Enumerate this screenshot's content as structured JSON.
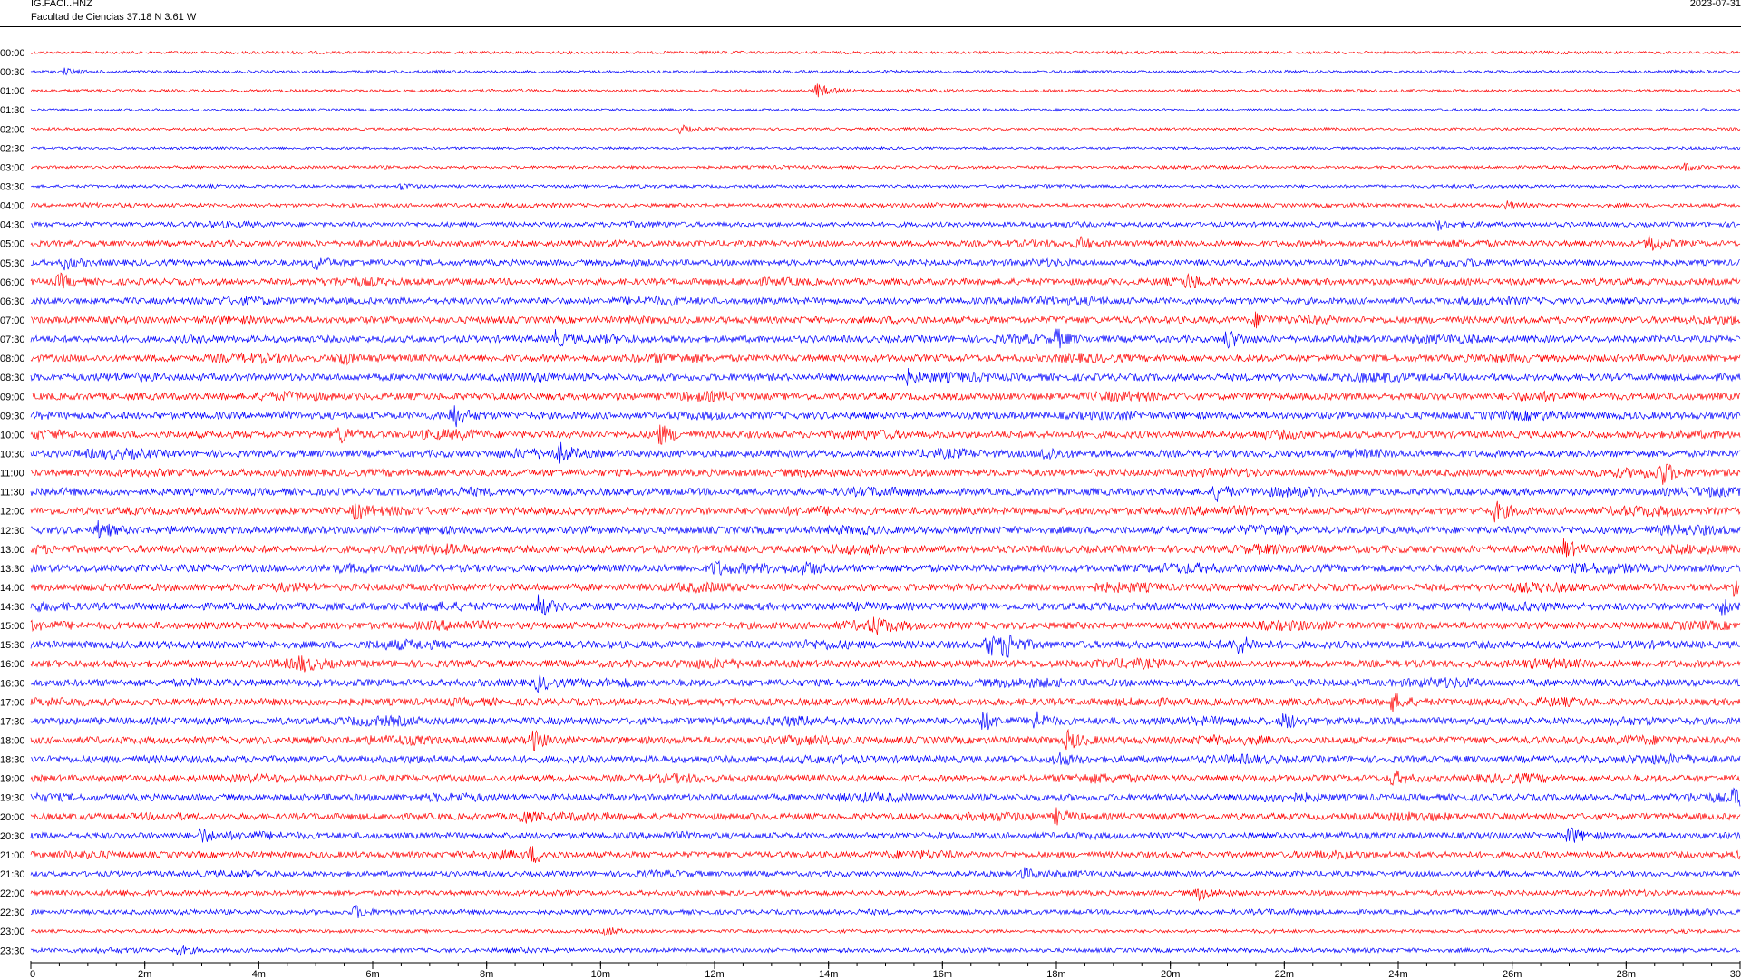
{
  "header": {
    "station_code": "IG.FACI..HNZ",
    "station_desc": "Facultad de Ciencias  37.18 N 3.61 W",
    "date": "2023-07-31"
  },
  "chart_data": {
    "type": "line",
    "title": "",
    "xlabel": "",
    "ylabel": "",
    "x_unit": "minutes",
    "xlim": [
      0,
      30
    ],
    "x_ticks": [
      0,
      2,
      4,
      6,
      8,
      10,
      12,
      14,
      16,
      18,
      20,
      22,
      24,
      26,
      28,
      30
    ],
    "x_tick_labels": [
      "0",
      "2m",
      "4m",
      "6m",
      "8m",
      "10m",
      "12m",
      "14m",
      "16m",
      "18m",
      "20m",
      "22m",
      "24m",
      "26m",
      "28m",
      "30"
    ],
    "minor_ticks_per_minute": 2,
    "grid": false,
    "colors": [
      "#ff0000",
      "#0000ff"
    ],
    "rows": [
      {
        "label": "00:00",
        "level": 0.15,
        "events": []
      },
      {
        "label": "00:30",
        "level": 0.15,
        "events": [
          {
            "t": 0.6,
            "a": 0.4
          }
        ]
      },
      {
        "label": "01:00",
        "level": 0.15,
        "events": [
          {
            "t": 13.8,
            "a": 1.0
          }
        ]
      },
      {
        "label": "01:30",
        "level": 0.12,
        "events": []
      },
      {
        "label": "02:00",
        "level": 0.12,
        "events": [
          {
            "t": 11.4,
            "a": 0.5
          }
        ]
      },
      {
        "label": "02:30",
        "level": 0.12,
        "events": []
      },
      {
        "label": "03:00",
        "level": 0.18,
        "events": [
          {
            "t": 29.0,
            "a": 0.6
          }
        ]
      },
      {
        "label": "03:30",
        "level": 0.2,
        "events": [
          {
            "t": 6.5,
            "a": 0.4
          }
        ]
      },
      {
        "label": "04:00",
        "level": 0.35,
        "events": [
          {
            "t": 25.9,
            "a": 0.5
          }
        ]
      },
      {
        "label": "04:30",
        "level": 0.5,
        "events": [
          {
            "t": 24.7,
            "a": 0.6
          }
        ]
      },
      {
        "label": "05:00",
        "level": 0.7,
        "events": [
          {
            "t": 18.4,
            "a": 0.8
          },
          {
            "t": 28.4,
            "a": 1.2
          }
        ]
      },
      {
        "label": "05:30",
        "level": 0.7,
        "events": [
          {
            "t": 0.6,
            "a": 0.8
          },
          {
            "t": 5.0,
            "a": 0.9
          }
        ]
      },
      {
        "label": "06:00",
        "level": 0.8,
        "events": [
          {
            "t": 0.5,
            "a": 0.9
          },
          {
            "t": 20.3,
            "a": 0.8
          }
        ]
      },
      {
        "label": "06:30",
        "level": 0.8,
        "events": [
          {
            "t": 17.2,
            "a": 0.7
          }
        ]
      },
      {
        "label": "07:00",
        "level": 0.85,
        "events": [
          {
            "t": 21.5,
            "a": 0.8
          }
        ]
      },
      {
        "label": "07:30",
        "level": 0.85,
        "events": [
          {
            "t": 9.2,
            "a": 1.0
          },
          {
            "t": 18.0,
            "a": 1.1
          },
          {
            "t": 21.0,
            "a": 1.2
          }
        ]
      },
      {
        "label": "08:00",
        "level": 0.9,
        "events": [
          {
            "t": 5.4,
            "a": 0.9
          }
        ]
      },
      {
        "label": "08:30",
        "level": 0.9,
        "events": [
          {
            "t": 15.4,
            "a": 0.8
          }
        ]
      },
      {
        "label": "09:00",
        "level": 0.9,
        "events": []
      },
      {
        "label": "09:30",
        "level": 0.9,
        "events": [
          {
            "t": 7.4,
            "a": 1.6
          }
        ]
      },
      {
        "label": "10:00",
        "level": 0.9,
        "events": [
          {
            "t": 5.4,
            "a": 1.2
          },
          {
            "t": 11.0,
            "a": 1.6
          }
        ]
      },
      {
        "label": "10:30",
        "level": 0.9,
        "events": [
          {
            "t": 9.3,
            "a": 1.0
          },
          {
            "t": 17.8,
            "a": 1.0
          }
        ]
      },
      {
        "label": "11:00",
        "level": 0.9,
        "events": [
          {
            "t": 28.6,
            "a": 1.6
          }
        ]
      },
      {
        "label": "11:30",
        "level": 0.9,
        "events": [
          {
            "t": 20.8,
            "a": 1.1
          }
        ]
      },
      {
        "label": "12:00",
        "level": 0.95,
        "events": [
          {
            "t": 5.7,
            "a": 1.0
          },
          {
            "t": 25.7,
            "a": 1.2
          }
        ]
      },
      {
        "label": "12:30",
        "level": 0.95,
        "events": [
          {
            "t": 1.2,
            "a": 1.1
          }
        ]
      },
      {
        "label": "13:00",
        "level": 0.95,
        "events": [
          {
            "t": 26.9,
            "a": 1.2
          }
        ]
      },
      {
        "label": "13:30",
        "level": 0.95,
        "events": [
          {
            "t": 12.0,
            "a": 0.9
          },
          {
            "t": 13.6,
            "a": 1.0
          }
        ]
      },
      {
        "label": "14:00",
        "level": 0.9,
        "events": [
          {
            "t": 29.9,
            "a": 1.0
          }
        ]
      },
      {
        "label": "14:30",
        "level": 0.95,
        "events": [
          {
            "t": 8.9,
            "a": 1.4
          },
          {
            "t": 29.7,
            "a": 1.0
          }
        ]
      },
      {
        "label": "15:00",
        "level": 0.9,
        "events": [
          {
            "t": 14.8,
            "a": 0.9
          }
        ]
      },
      {
        "label": "15:30",
        "level": 0.95,
        "events": [
          {
            "t": 16.8,
            "a": 1.6
          },
          {
            "t": 17.1,
            "a": 1.8
          },
          {
            "t": 21.2,
            "a": 1.0
          }
        ]
      },
      {
        "label": "16:00",
        "level": 0.9,
        "events": [
          {
            "t": 4.7,
            "a": 0.8
          }
        ]
      },
      {
        "label": "16:30",
        "level": 0.9,
        "events": [
          {
            "t": 8.9,
            "a": 1.0
          }
        ]
      },
      {
        "label": "17:00",
        "level": 0.9,
        "events": [
          {
            "t": 23.9,
            "a": 1.1
          }
        ]
      },
      {
        "label": "17:30",
        "level": 0.9,
        "events": [
          {
            "t": 16.7,
            "a": 1.3
          },
          {
            "t": 17.6,
            "a": 1.4
          },
          {
            "t": 22.0,
            "a": 1.0
          }
        ]
      },
      {
        "label": "18:00",
        "level": 0.9,
        "events": [
          {
            "t": 8.8,
            "a": 1.3
          },
          {
            "t": 18.2,
            "a": 1.2
          }
        ]
      },
      {
        "label": "18:30",
        "level": 0.9,
        "events": [
          {
            "t": 18.0,
            "a": 1.0
          }
        ]
      },
      {
        "label": "19:00",
        "level": 0.85,
        "events": [
          {
            "t": 23.9,
            "a": 1.0
          }
        ]
      },
      {
        "label": "19:30",
        "level": 0.85,
        "events": [
          {
            "t": 29.9,
            "a": 1.2
          }
        ]
      },
      {
        "label": "20:00",
        "level": 0.8,
        "events": [
          {
            "t": 8.6,
            "a": 0.9
          },
          {
            "t": 18.0,
            "a": 0.9
          }
        ]
      },
      {
        "label": "20:30",
        "level": 0.75,
        "events": [
          {
            "t": 3.0,
            "a": 1.0
          },
          {
            "t": 27.0,
            "a": 1.2
          }
        ]
      },
      {
        "label": "21:00",
        "level": 0.75,
        "events": [
          {
            "t": 8.8,
            "a": 1.0
          }
        ]
      },
      {
        "label": "21:30",
        "level": 0.6,
        "events": [
          {
            "t": 17.4,
            "a": 0.8
          }
        ]
      },
      {
        "label": "22:00",
        "level": 0.55,
        "events": [
          {
            "t": 20.5,
            "a": 0.7
          }
        ]
      },
      {
        "label": "22:30",
        "level": 0.5,
        "events": [
          {
            "t": 5.7,
            "a": 0.8
          }
        ]
      },
      {
        "label": "23:00",
        "level": 0.25,
        "events": [
          {
            "t": 10.1,
            "a": 0.6
          }
        ]
      },
      {
        "label": "23:30",
        "level": 0.4,
        "events": [
          {
            "t": 2.6,
            "a": 0.6
          }
        ]
      }
    ]
  }
}
